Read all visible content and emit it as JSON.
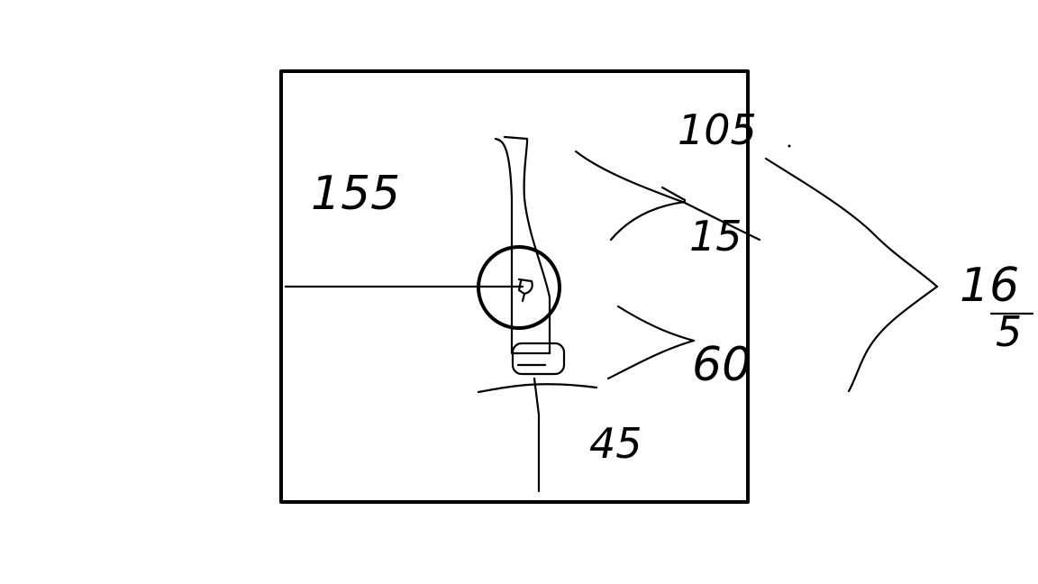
{
  "colors": {
    "ink": "#000000",
    "background": "#ffffff"
  },
  "labels": {
    "left": "155",
    "top_right": "105",
    "upper_right": "15",
    "middle_right": "60",
    "bottom": "45",
    "far_right_top": "16",
    "far_right_bottom": "5"
  }
}
